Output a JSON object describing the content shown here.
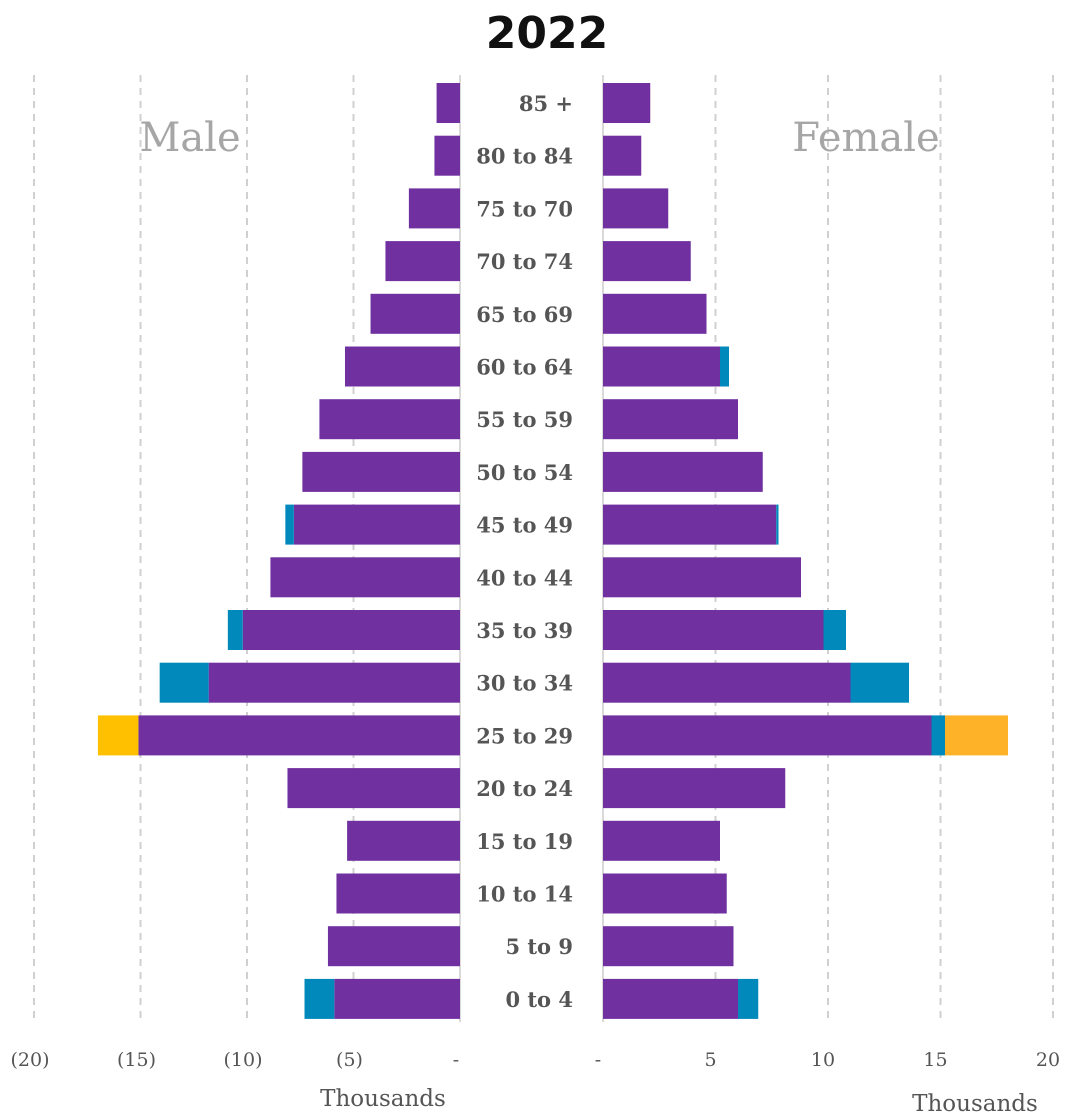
{
  "chart_data": {
    "type": "bar",
    "title": "2022",
    "left_label": "Male",
    "right_label": "Female",
    "categories": [
      "85 +",
      "80 to 84",
      "75 to 70",
      "70 to 74",
      "65 to 69",
      "60 to 64",
      "55 to 59",
      "50 to 54",
      "45 to 49",
      "40 to 44",
      "35 to 39",
      "30 to 34",
      "25 to 29",
      "20 to 24",
      "15 to 19",
      "10 to 14",
      "5 to 9",
      "0 to 4"
    ],
    "male": {
      "ticks": [
        "(20)",
        "(15)",
        "(10)",
        "(5)",
        "-"
      ],
      "xlabel": "Thousands",
      "xlim": [
        0,
        20
      ],
      "series": [
        {
          "color": "#7030a0",
          "values": [
            1.1,
            1.2,
            2.4,
            3.5,
            4.2,
            5.4,
            6.6,
            7.4,
            7.8,
            8.9,
            10.2,
            11.8,
            15.1,
            8.1,
            5.3,
            5.8,
            6.2,
            5.9
          ]
        },
        {
          "color": "#0089ba",
          "values": [
            0,
            0,
            0,
            0,
            0,
            0,
            0,
            0,
            0.4,
            0,
            0.7,
            2.3,
            0,
            0,
            0,
            0,
            0,
            1.4
          ]
        },
        {
          "color": "#ffc000",
          "values": [
            0,
            0,
            0,
            0,
            0,
            0,
            0,
            0,
            0,
            0,
            0,
            0,
            1.9,
            0,
            0,
            0,
            0,
            0
          ]
        }
      ]
    },
    "female": {
      "ticks": [
        "-",
        "5",
        "10",
        "15",
        "20"
      ],
      "xlabel": "Thousands",
      "xlim": [
        0,
        20
      ],
      "series": [
        {
          "color": "#7030a0",
          "values": [
            2.1,
            1.7,
            2.9,
            3.9,
            4.6,
            5.2,
            6.0,
            7.1,
            7.7,
            8.8,
            9.8,
            11.0,
            14.6,
            8.1,
            5.2,
            5.5,
            5.8,
            6.0
          ]
        },
        {
          "color": "#0089ba",
          "values": [
            0,
            0,
            0,
            0,
            0,
            0.4,
            0,
            0,
            0.1,
            0,
            1.0,
            2.6,
            0.6,
            0,
            0,
            0,
            0,
            0.9
          ]
        },
        {
          "color": "#fdb228",
          "values": [
            0,
            0,
            0,
            0,
            0,
            0,
            0,
            0,
            0,
            0,
            0,
            0,
            2.8,
            0,
            0,
            0,
            0,
            0
          ]
        }
      ]
    },
    "grid": true
  }
}
